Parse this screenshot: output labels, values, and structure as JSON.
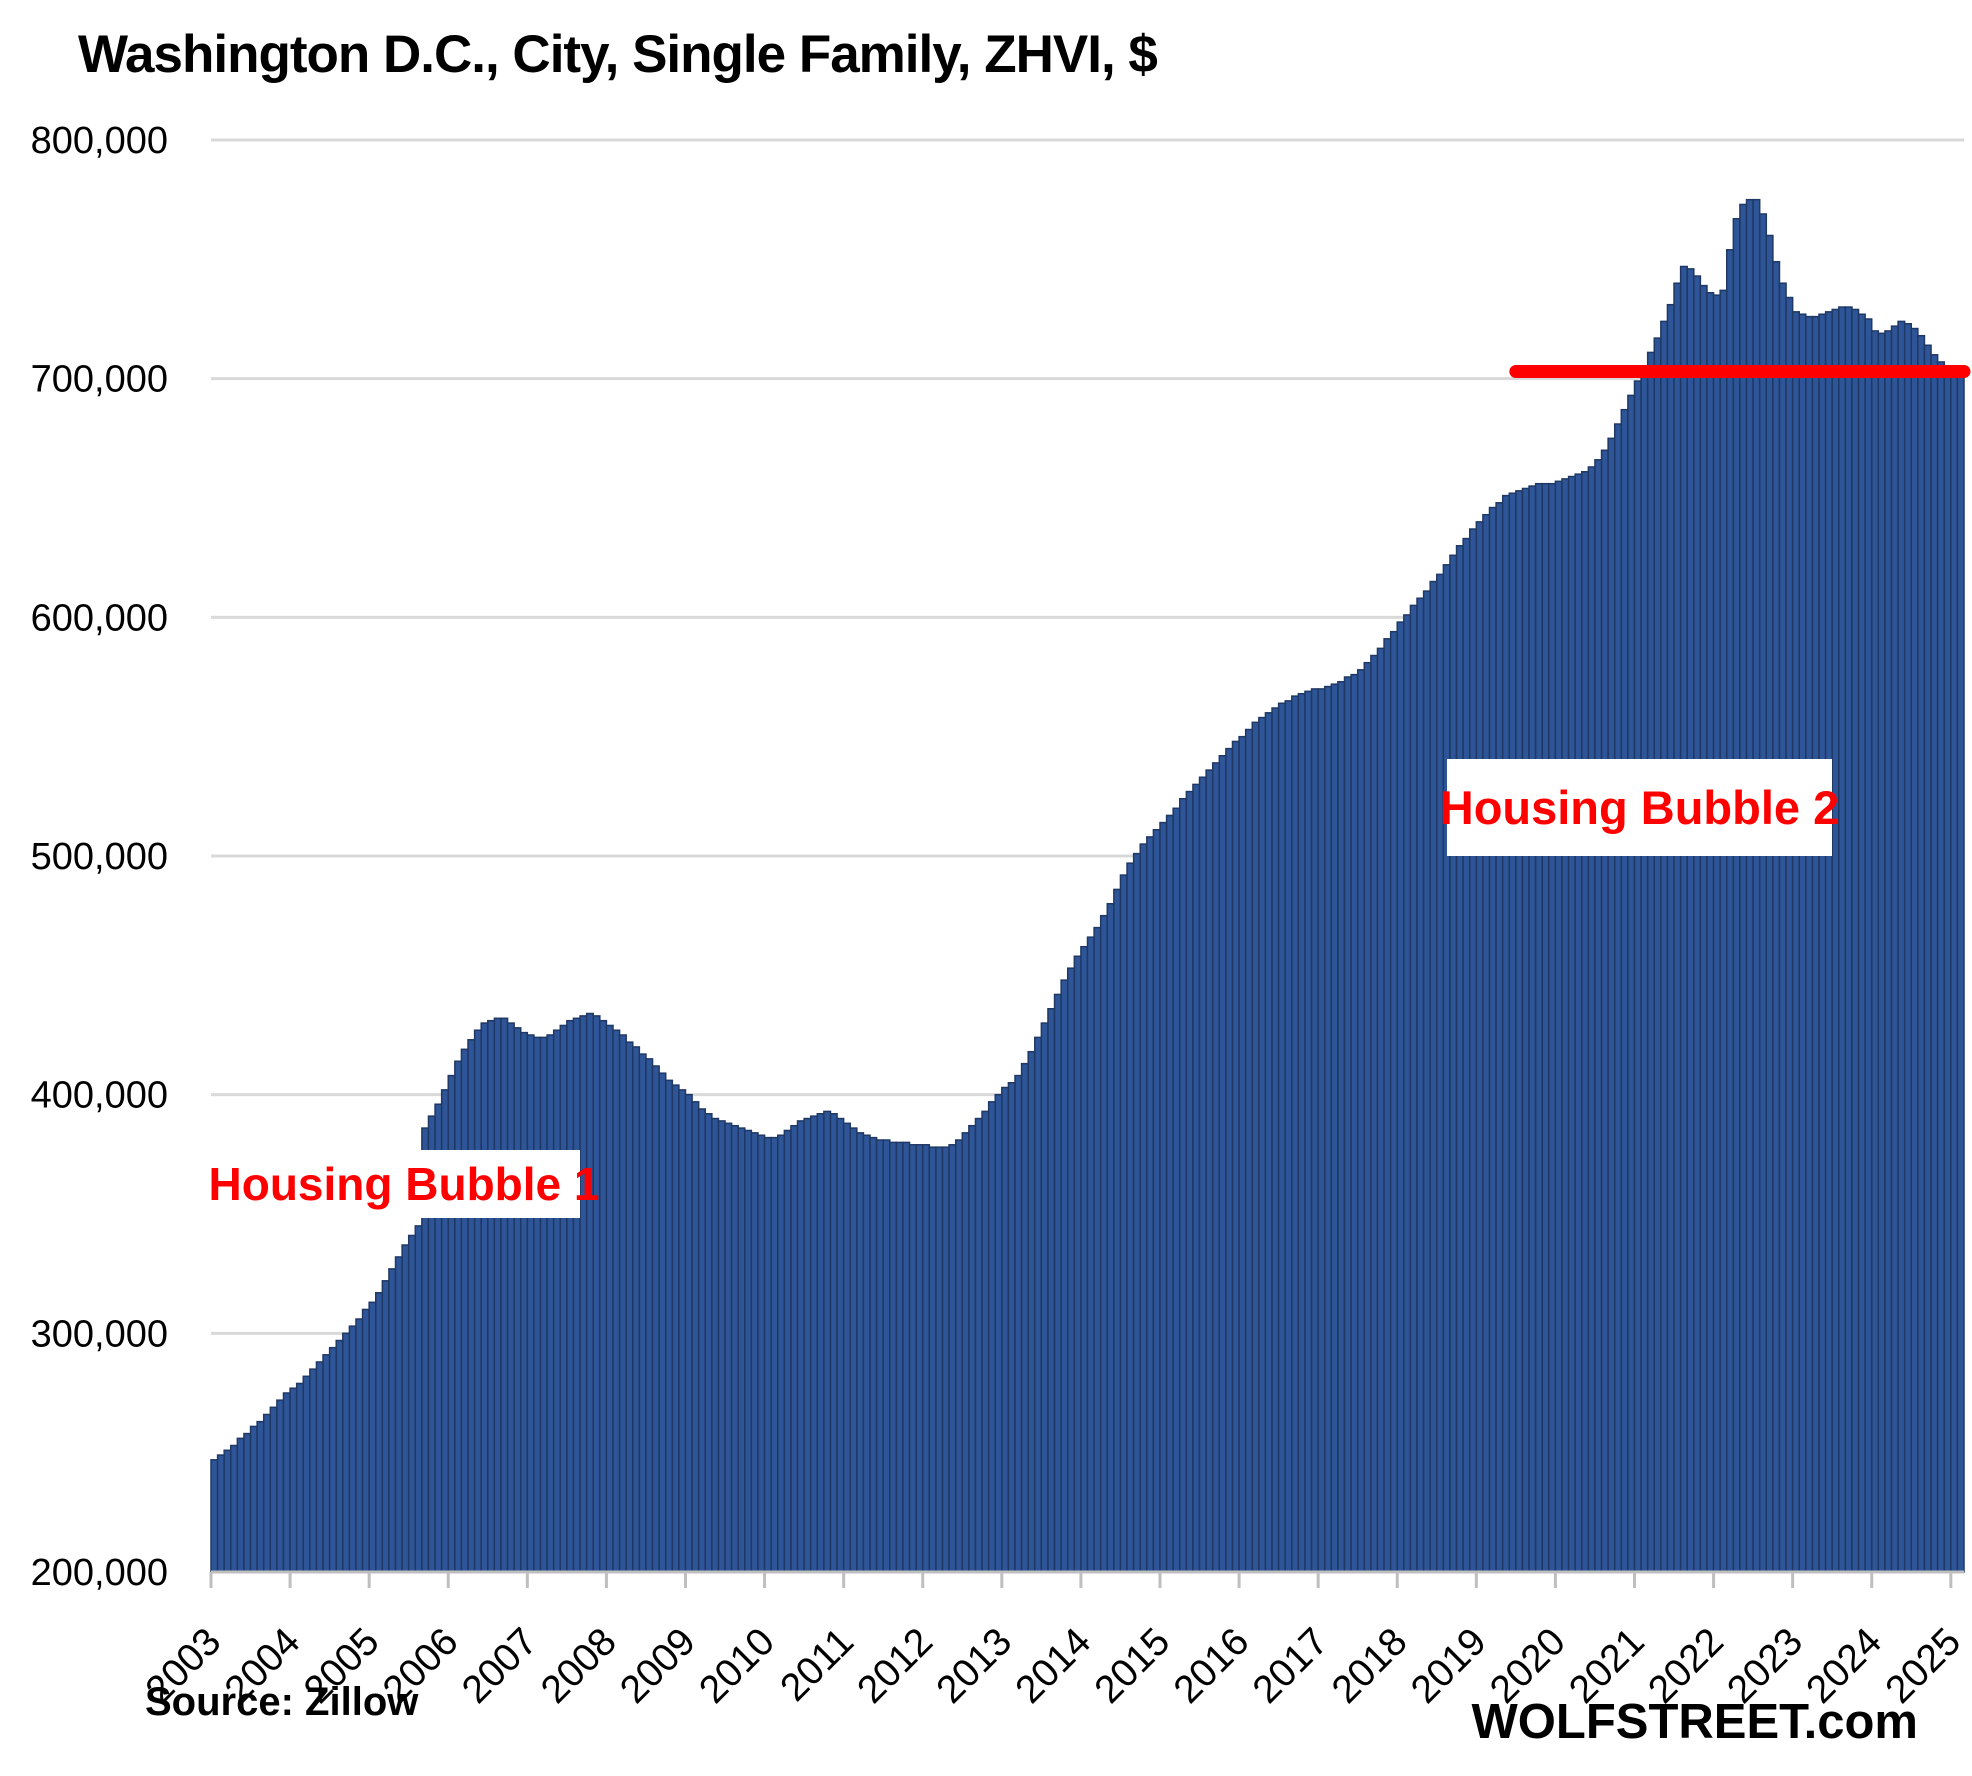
{
  "header": {
    "title": "Washington D.C., City, Single Family, ZHVI, $"
  },
  "annotations": {
    "bubble1": "Housing Bubble 1",
    "bubble2": "Housing Bubble 2"
  },
  "footer": {
    "source": "Source: Zillow",
    "watermark": "WOLFSTREET.com"
  },
  "colors": {
    "bar_fill": "#2E5597",
    "bar_stroke": "#1F3864",
    "red_line": "#FF0000",
    "grid": "#D9D9D9",
    "axis": "#BFBFBF",
    "annotation_text": "#FF0000",
    "tick_text": "#000000"
  },
  "chart_data": {
    "type": "bar",
    "title": "Washington D.C., City, Single Family, ZHVI, $",
    "xlabel": "",
    "ylabel": "",
    "x_monthly_start": "2003-01",
    "x_monthly_end": "2025-02",
    "x_tick_labels": [
      "2003",
      "2004",
      "2005",
      "2006",
      "2007",
      "2008",
      "2009",
      "2010",
      "2011",
      "2012",
      "2013",
      "2014",
      "2015",
      "2016",
      "2017",
      "2018",
      "2019",
      "2020",
      "2021",
      "2022",
      "2023",
      "2024",
      "2025"
    ],
    "ylim": [
      200000,
      800000
    ],
    "grid": true,
    "legend": "none",
    "y_ticks": [
      {
        "label": "800,000",
        "value": 800000
      },
      {
        "label": "700,000",
        "value": 700000
      },
      {
        "label": "600,000",
        "value": 600000
      },
      {
        "label": "500,000",
        "value": 500000
      },
      {
        "label": "400,000",
        "value": 400000
      },
      {
        "label": "300,000",
        "value": 300000
      },
      {
        "label": "200,000",
        "value": 200000
      }
    ],
    "red_line": {
      "value": 703000,
      "start_month_index": 198
    },
    "series": [
      {
        "name": "ZHVI single family, $",
        "values": [
          247000,
          249000,
          251000,
          253000,
          256000,
          258000,
          261000,
          263000,
          266000,
          269000,
          272000,
          275000,
          277000,
          279000,
          282000,
          285000,
          288000,
          291000,
          294000,
          297000,
          300000,
          303000,
          306000,
          310000,
          313000,
          317000,
          322000,
          327000,
          332000,
          337000,
          341000,
          345000,
          386000,
          391000,
          396000,
          402000,
          408000,
          414000,
          419000,
          423000,
          427000,
          430000,
          431000,
          432000,
          432000,
          430000,
          428000,
          426000,
          425000,
          424000,
          424000,
          425000,
          427000,
          429000,
          431000,
          432000,
          433000,
          434000,
          433000,
          431000,
          429000,
          427000,
          425000,
          422000,
          420000,
          417000,
          415000,
          412000,
          409000,
          406000,
          404000,
          402000,
          400000,
          397000,
          394000,
          392000,
          390000,
          389000,
          388000,
          387000,
          386000,
          385000,
          384000,
          383000,
          382000,
          382000,
          383000,
          385000,
          387000,
          389000,
          390000,
          391000,
          392000,
          393000,
          392000,
          390000,
          388000,
          386000,
          384000,
          383000,
          382000,
          381000,
          381000,
          380000,
          380000,
          380000,
          379000,
          379000,
          379000,
          378000,
          378000,
          378000,
          379000,
          381000,
          384000,
          387000,
          390000,
          393000,
          397000,
          400000,
          403000,
          405000,
          408000,
          413000,
          418000,
          424000,
          430000,
          436000,
          442000,
          448000,
          453000,
          458000,
          462000,
          466000,
          470000,
          475000,
          480000,
          486000,
          492000,
          497000,
          501000,
          505000,
          508000,
          511000,
          514000,
          517000,
          520000,
          524000,
          527000,
          530000,
          533000,
          536000,
          539000,
          542000,
          545000,
          548000,
          550000,
          553000,
          556000,
          558000,
          560000,
          562000,
          564000,
          565000,
          567000,
          568000,
          569000,
          570000,
          570000,
          571000,
          572000,
          573000,
          575000,
          576000,
          578000,
          581000,
          584000,
          587000,
          591000,
          594000,
          598000,
          601000,
          605000,
          608000,
          611000,
          615000,
          618000,
          622000,
          626000,
          630000,
          633000,
          637000,
          640000,
          643000,
          646000,
          648000,
          651000,
          652000,
          653000,
          654000,
          655000,
          656000,
          656000,
          656000,
          657000,
          658000,
          659000,
          660000,
          661000,
          663000,
          666000,
          670000,
          675000,
          681000,
          687000,
          693000,
          699000,
          705000,
          711000,
          717000,
          724000,
          731000,
          740000,
          747000,
          746000,
          743000,
          739000,
          736000,
          735000,
          737000,
          754000,
          767000,
          773000,
          775000,
          775000,
          769000,
          760000,
          749000,
          740000,
          734000,
          728000,
          727000,
          726000,
          726000,
          727000,
          728000,
          729000,
          730000,
          730000,
          729000,
          727000,
          725000,
          720000,
          719000,
          720000,
          722000,
          724000,
          723000,
          721000,
          718000,
          714000,
          710000,
          707000,
          705000,
          704000,
          703000
        ]
      }
    ]
  }
}
